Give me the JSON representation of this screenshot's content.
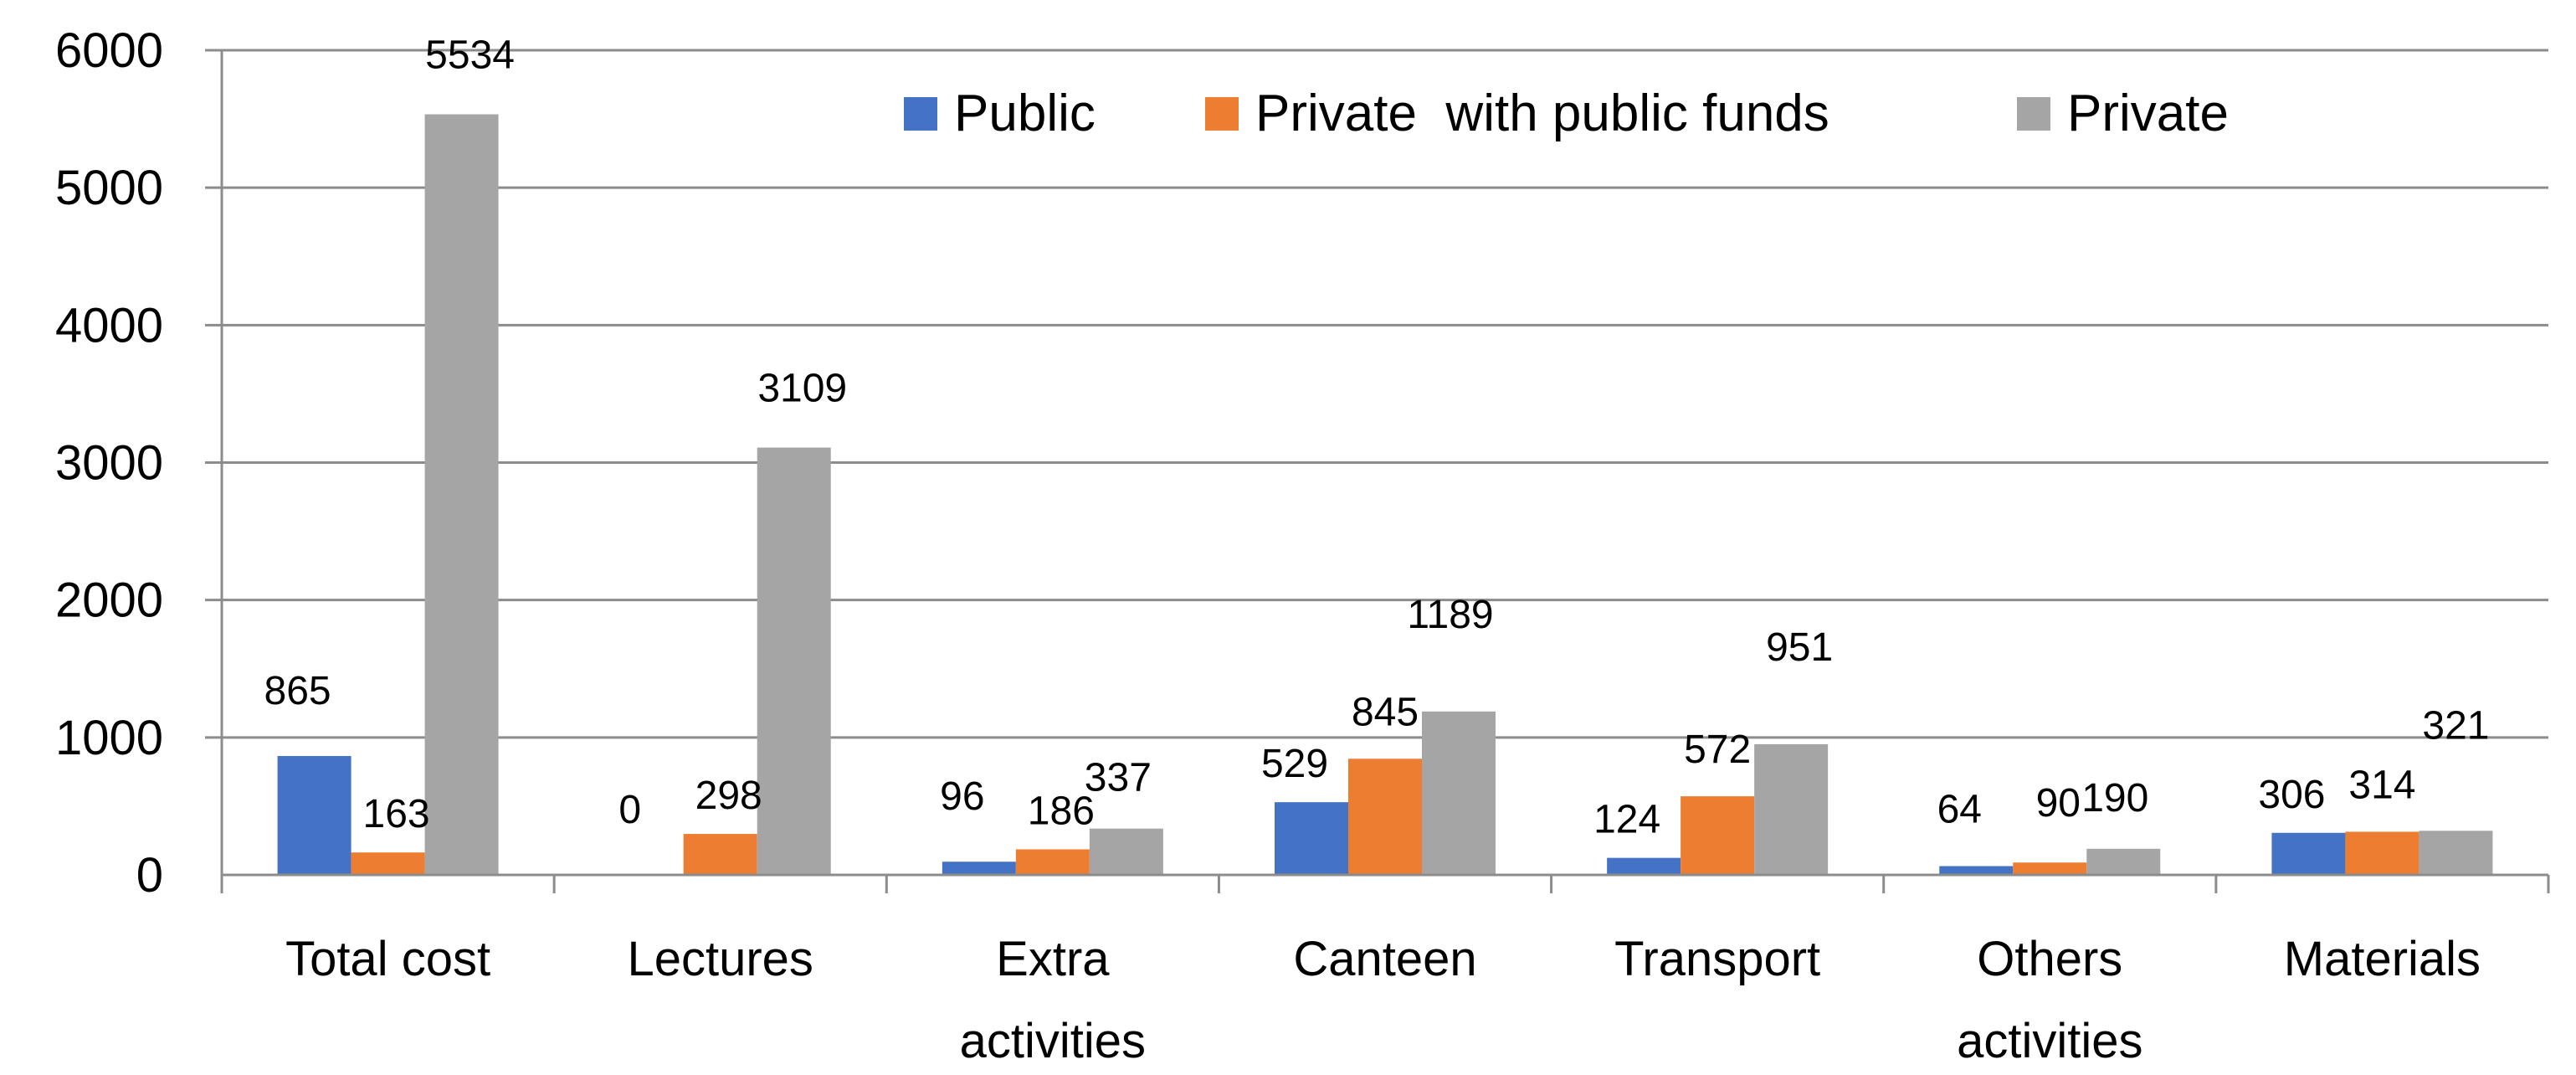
{
  "chart_data": {
    "type": "bar",
    "title": "",
    "xlabel": "",
    "ylabel": "",
    "ylim": [
      0,
      6000
    ],
    "yticks": [
      0,
      1000,
      2000,
      3000,
      4000,
      5000,
      6000
    ],
    "grid": true,
    "legend_position": "top-center",
    "categories": [
      [
        "Total cost"
      ],
      [
        "Lectures"
      ],
      [
        "Extra",
        "activities"
      ],
      [
        "Canteen"
      ],
      [
        "Transport"
      ],
      [
        "Others",
        "activities"
      ],
      [
        "Materials"
      ]
    ],
    "series": [
      {
        "name": "Public",
        "color": "#4472C4",
        "values": [
          865,
          0,
          96,
          529,
          124,
          64,
          306
        ]
      },
      {
        "name": "Private  with public funds",
        "color": "#ED7D31",
        "values": [
          163,
          298,
          186,
          845,
          572,
          90,
          314
        ]
      },
      {
        "name": "Private",
        "color": "#A5A5A5",
        "values": [
          5534,
          3109,
          337,
          1189,
          951,
          190,
          321
        ]
      }
    ]
  }
}
